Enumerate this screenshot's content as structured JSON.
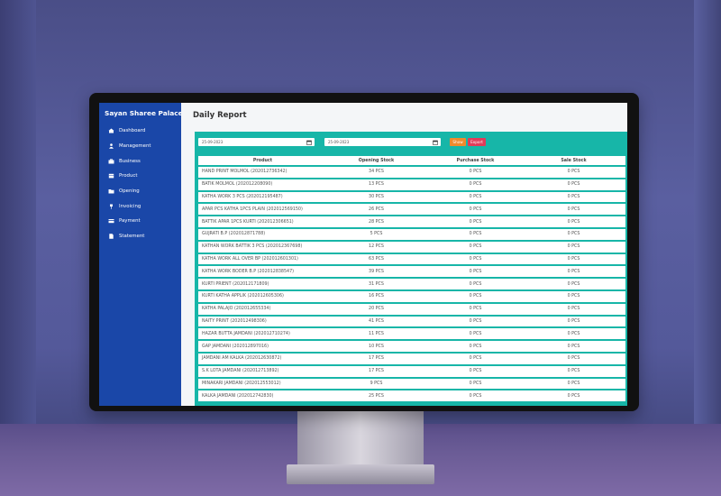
{
  "app": {
    "brand": "Sayan Sharee Palace",
    "page_title": "Daily Report"
  },
  "sidebar": {
    "items": [
      {
        "label": "Dashboard",
        "icon": "home-icon"
      },
      {
        "label": "Management",
        "icon": "user-icon"
      },
      {
        "label": "Business",
        "icon": "briefcase-icon"
      },
      {
        "label": "Product",
        "icon": "box-icon"
      },
      {
        "label": "Opening",
        "icon": "folder-icon"
      },
      {
        "label": "Invoicing",
        "icon": "pin-icon"
      },
      {
        "label": "Payment",
        "icon": "card-icon"
      },
      {
        "label": "Statement",
        "icon": "document-icon"
      }
    ]
  },
  "filters": {
    "from_date": "25-09-2023",
    "to_date": "25-09-2023",
    "show_label": "Show",
    "export_label": "Export"
  },
  "table": {
    "headers": [
      "Product",
      "Opening Stock",
      "Purchase Stock",
      "Sale Stock"
    ],
    "rows": [
      [
        "HAND PRINT MOLMOL (202012736342)",
        "34 PCS",
        "0 PCS",
        "0 PCS"
      ],
      [
        "BATIK MOLMOL (202012208090)",
        "13 PCS",
        "0 PCS",
        "0 PCS"
      ],
      [
        "KATHA WORK 3 PCS (202012195487)",
        "30 PCS",
        "0 PCS",
        "0 PCS"
      ],
      [
        "APAR PCS KATHA 1PCS PLAIN (202012569150)",
        "26 PCS",
        "0 PCS",
        "0 PCS"
      ],
      [
        "BATTIK APAR 1PCS KURTI (202012306651)",
        "28 PCS",
        "0 PCS",
        "0 PCS"
      ],
      [
        "GUJRATI B.P (202012871788)",
        "5 PCS",
        "0 PCS",
        "0 PCS"
      ],
      [
        "KATHAN WORK BATTIK 3 PCS (202012367698)",
        "12 PCS",
        "0 PCS",
        "0 PCS"
      ],
      [
        "KATHA WORK ALL OVER BP (202012601301)",
        "63 PCS",
        "0 PCS",
        "0 PCS"
      ],
      [
        "KATHA WORK BODER B.P (202012838547)",
        "39 PCS",
        "0 PCS",
        "0 PCS"
      ],
      [
        "KURTI PRIENT (202012171809)",
        "31 PCS",
        "0 PCS",
        "0 PCS"
      ],
      [
        "KURTI KATHA APPLIK (202012605306)",
        "16 PCS",
        "0 PCS",
        "0 PCS"
      ],
      [
        "KATHA PALAJO (202012655334)",
        "20 PCS",
        "0 PCS",
        "0 PCS"
      ],
      [
        "NAITY PRINT (202012498306)",
        "41 PCS",
        "0 PCS",
        "0 PCS"
      ],
      [
        "HAZAR BUTTA JAMDANI (202012710274)",
        "11 PCS",
        "0 PCS",
        "0 PCS"
      ],
      [
        "GAP JAMDANI (202012897016)",
        "10 PCS",
        "0 PCS",
        "0 PCS"
      ],
      [
        "JAMDANI AM KALKA (202012630872)",
        "17 PCS",
        "0 PCS",
        "0 PCS"
      ],
      [
        "S.K LOTA JAMDANI (202012713892)",
        "17 PCS",
        "0 PCS",
        "0 PCS"
      ],
      [
        "MINAKARI JAMDANI (202012553012)",
        "9 PCS",
        "0 PCS",
        "0 PCS"
      ],
      [
        "KALKA JAMDANI (202012742830)",
        "25 PCS",
        "0 PCS",
        "0 PCS"
      ]
    ]
  },
  "colors": {
    "sidebar": "#1a47a8",
    "panel": "#17b6a8",
    "show_button": "#f08a2c",
    "export_button": "#e23b5a"
  }
}
